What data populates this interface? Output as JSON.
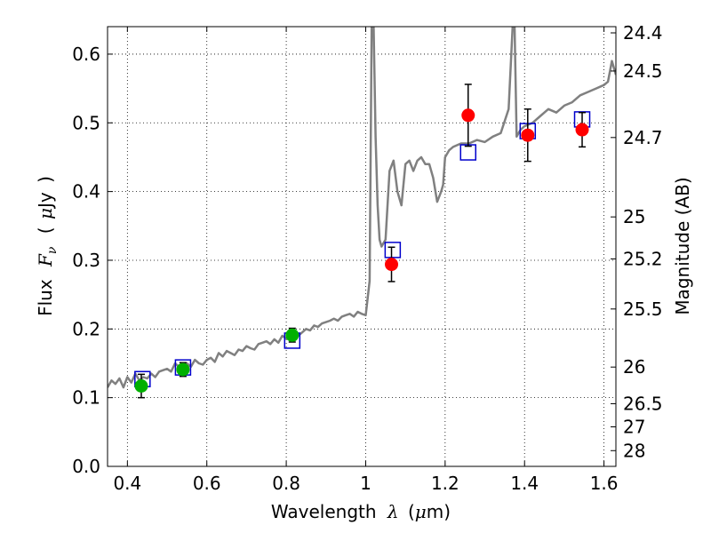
{
  "chart_data": {
    "type": "scatter",
    "title": "",
    "xlabel_parts": [
      "Wavelength",
      "λ",
      "(",
      "μ",
      "m)"
    ],
    "ylabel_parts": [
      "Flux",
      "F",
      "ν",
      "(",
      "μ",
      "Jy",
      ")"
    ],
    "y2label": "Magnitude (AB)",
    "xlim": [
      0.35,
      1.63
    ],
    "ylim": [
      0.0,
      0.64
    ],
    "grid": true,
    "grid_style": "dotted",
    "xticks": [
      0.4,
      0.6,
      0.8,
      1.0,
      1.2,
      1.4,
      1.6
    ],
    "xtick_labels": [
      "0.4",
      "0.6",
      "0.8",
      "1",
      "1.2",
      "1.4",
      "1.6"
    ],
    "yticks": [
      0.0,
      0.1,
      0.2,
      0.3,
      0.4,
      0.5,
      0.6
    ],
    "ytick_labels": [
      "0.0",
      "0.1",
      "0.2",
      "0.3",
      "0.4",
      "0.5",
      "0.6"
    ],
    "mag_ticks": [
      24.4,
      24.5,
      24.7,
      25,
      25.2,
      25.5,
      26,
      26.5,
      27,
      28
    ],
    "mag_tick_labels": [
      "24.4",
      "24.5",
      "24.7",
      "25",
      "25.2",
      "25.5",
      "26",
      "26.5",
      "27",
      "28"
    ],
    "mag_zero_point": 23.9,
    "colors": {
      "model": "#808080",
      "model_box": "#0000cc",
      "optical": "#00b000",
      "infrared": "#ff0000",
      "errorbar": "#000000"
    },
    "series": [
      {
        "kind": "model_spectrum",
        "x": [
          0.35,
          0.36,
          0.37,
          0.38,
          0.39,
          0.4,
          0.41,
          0.42,
          0.43,
          0.44,
          0.45,
          0.46,
          0.47,
          0.48,
          0.49,
          0.5,
          0.51,
          0.52,
          0.53,
          0.54,
          0.55,
          0.56,
          0.57,
          0.58,
          0.59,
          0.6,
          0.61,
          0.62,
          0.63,
          0.64,
          0.65,
          0.66,
          0.67,
          0.68,
          0.69,
          0.7,
          0.71,
          0.72,
          0.73,
          0.74,
          0.75,
          0.76,
          0.77,
          0.78,
          0.79,
          0.8,
          0.81,
          0.82,
          0.83,
          0.84,
          0.85,
          0.86,
          0.87,
          0.88,
          0.89,
          0.9,
          0.91,
          0.92,
          0.93,
          0.94,
          0.95,
          0.96,
          0.97,
          0.98,
          0.99,
          1.0,
          1.01,
          1.015,
          1.02,
          1.025,
          1.03,
          1.035,
          1.04,
          1.05,
          1.06,
          1.07,
          1.08,
          1.09,
          1.1,
          1.11,
          1.12,
          1.13,
          1.14,
          1.15,
          1.16,
          1.17,
          1.18,
          1.19,
          1.195,
          1.2,
          1.21,
          1.22,
          1.24,
          1.26,
          1.28,
          1.3,
          1.32,
          1.34,
          1.36,
          1.37,
          1.375,
          1.38,
          1.385,
          1.39,
          1.4,
          1.42,
          1.44,
          1.46,
          1.48,
          1.5,
          1.52,
          1.54,
          1.56,
          1.58,
          1.6,
          1.61,
          1.62,
          1.63
        ],
        "y": [
          0.115,
          0.125,
          0.12,
          0.128,
          0.115,
          0.13,
          0.122,
          0.135,
          0.125,
          0.13,
          0.128,
          0.135,
          0.13,
          0.138,
          0.14,
          0.142,
          0.138,
          0.15,
          0.145,
          0.148,
          0.15,
          0.145,
          0.155,
          0.15,
          0.148,
          0.155,
          0.158,
          0.152,
          0.165,
          0.16,
          0.168,
          0.165,
          0.162,
          0.17,
          0.168,
          0.175,
          0.172,
          0.17,
          0.178,
          0.18,
          0.182,
          0.178,
          0.185,
          0.18,
          0.19,
          0.186,
          0.185,
          0.192,
          0.19,
          0.195,
          0.2,
          0.198,
          0.205,
          0.203,
          0.208,
          0.21,
          0.212,
          0.215,
          0.212,
          0.218,
          0.22,
          0.222,
          0.218,
          0.225,
          0.222,
          0.22,
          0.27,
          0.64,
          0.64,
          0.48,
          0.38,
          0.33,
          0.32,
          0.33,
          0.43,
          0.445,
          0.4,
          0.38,
          0.44,
          0.445,
          0.43,
          0.445,
          0.45,
          0.44,
          0.44,
          0.42,
          0.385,
          0.4,
          0.41,
          0.45,
          0.46,
          0.465,
          0.47,
          0.47,
          0.475,
          0.472,
          0.48,
          0.485,
          0.52,
          0.64,
          0.64,
          0.48,
          0.485,
          0.49,
          0.495,
          0.5,
          0.51,
          0.52,
          0.515,
          0.525,
          0.53,
          0.54,
          0.545,
          0.55,
          0.555,
          0.56,
          0.59,
          0.57
        ]
      },
      {
        "kind": "model_photometry_boxes",
        "x": [
          0.438,
          0.54,
          0.815,
          1.068,
          1.258,
          1.408,
          1.545
        ],
        "y": [
          0.127,
          0.144,
          0.183,
          0.315,
          0.457,
          0.488,
          0.505
        ]
      },
      {
        "kind": "observed_optical",
        "x": [
          0.435,
          0.54,
          0.815
        ],
        "y": [
          0.117,
          0.141,
          0.191
        ],
        "err": [
          0.017,
          0.01,
          0.01
        ]
      },
      {
        "kind": "observed_infrared",
        "x": [
          1.065,
          1.258,
          1.408,
          1.545
        ],
        "y": [
          0.294,
          0.511,
          0.482,
          0.49
        ],
        "err": [
          0.025,
          0.045,
          0.038,
          0.025
        ]
      }
    ]
  }
}
